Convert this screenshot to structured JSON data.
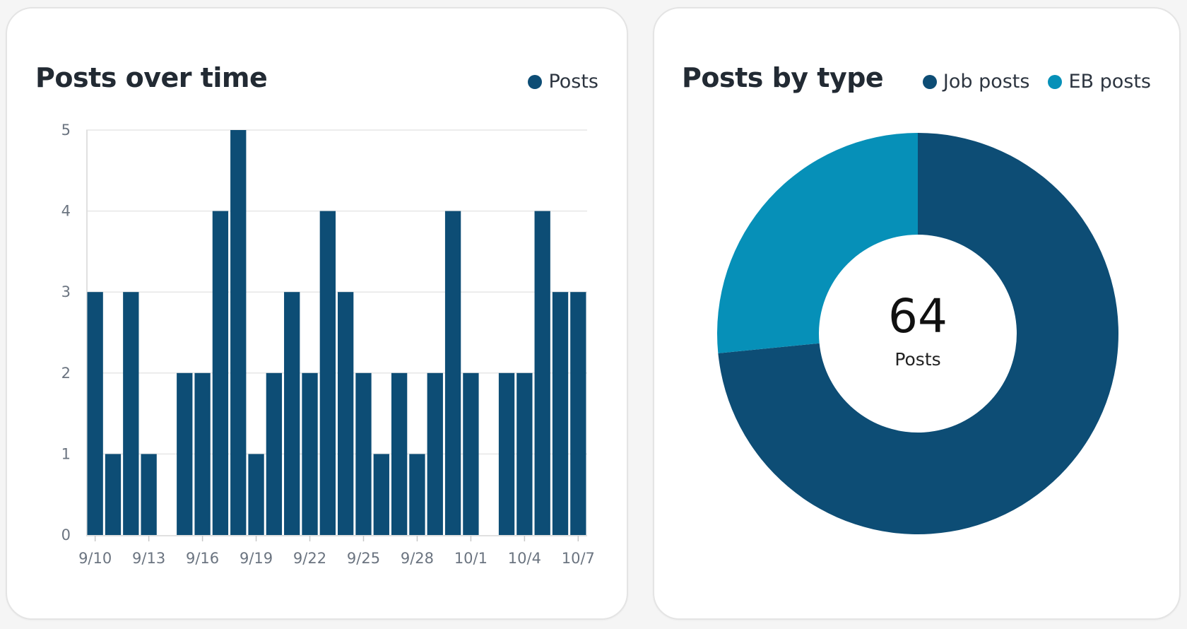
{
  "colors": {
    "posts": "#0d4d75",
    "job_posts": "#0d4d75",
    "eb_posts": "#0690b8",
    "grid": "#e6e6e6",
    "axis": "#e0e0e0"
  },
  "chart_data": [
    {
      "type": "bar",
      "title": "Posts over time",
      "legend": [
        "Posts"
      ],
      "legend_position": "top-right",
      "categories": [
        "9/10",
        "9/11",
        "9/12",
        "9/13",
        "9/14",
        "9/15",
        "9/16",
        "9/17",
        "9/18",
        "9/19",
        "9/20",
        "9/21",
        "9/22",
        "9/23",
        "9/24",
        "9/25",
        "9/26",
        "9/27",
        "9/28",
        "9/29",
        "9/30",
        "10/1",
        "10/2",
        "10/3",
        "10/4",
        "10/5",
        "10/6",
        "10/7"
      ],
      "tick_labels": [
        "9/10",
        "9/13",
        "9/16",
        "9/19",
        "9/22",
        "9/25",
        "9/28",
        "10/1",
        "10/4",
        "10/7"
      ],
      "series": [
        {
          "name": "Posts",
          "values": [
            3,
            1,
            3,
            1,
            0,
            2,
            2,
            4,
            5,
            1,
            2,
            3,
            2,
            4,
            3,
            2,
            1,
            2,
            1,
            2,
            4,
            2,
            0,
            2,
            2,
            4,
            3,
            3
          ]
        }
      ],
      "y_ticks": [
        0,
        1,
        2,
        3,
        4,
        5
      ],
      "ylim": [
        0,
        5
      ],
      "grid": true
    },
    {
      "type": "pie",
      "title": "Posts by type",
      "legend": [
        "Job posts",
        "EB posts"
      ],
      "legend_position": "top-right",
      "donut": true,
      "center_value": "64",
      "center_label": "Posts",
      "slices": [
        {
          "name": "Job posts",
          "value": 47
        },
        {
          "name": "EB posts",
          "value": 17
        }
      ]
    }
  ]
}
